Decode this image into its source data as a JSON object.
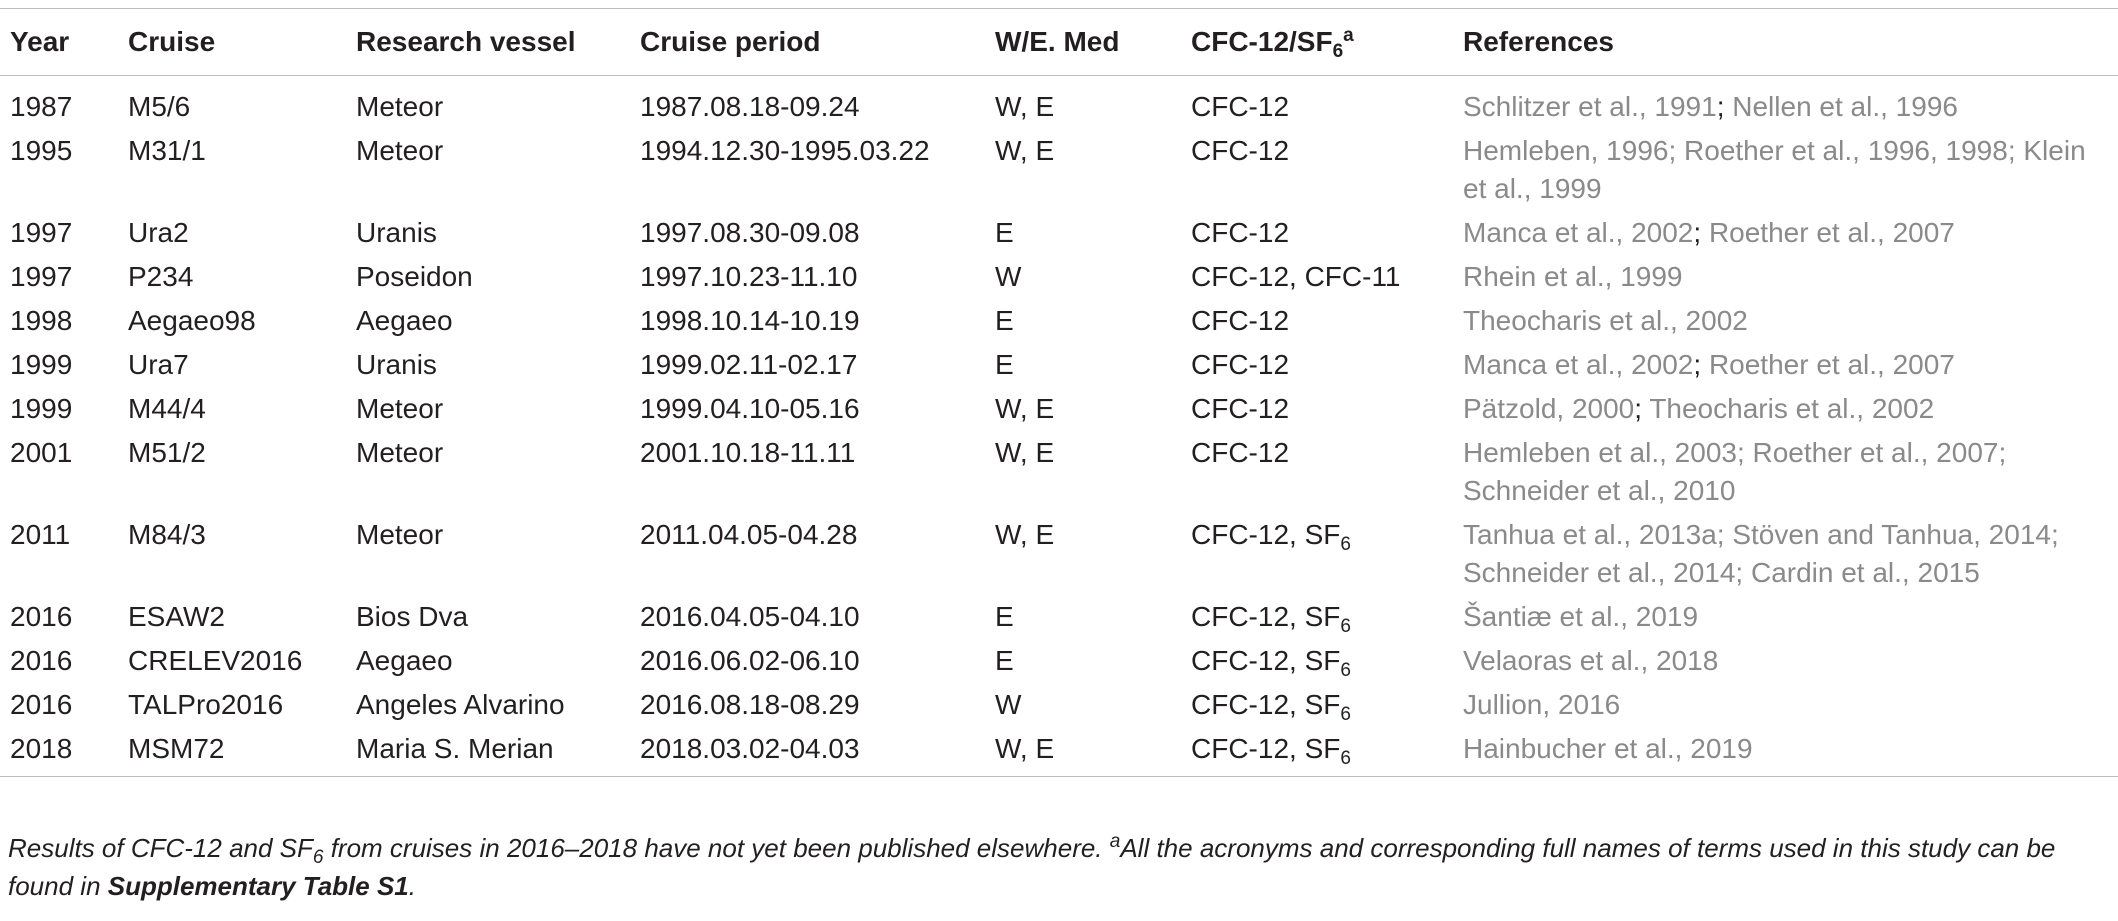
{
  "table": {
    "headers": {
      "year": "Year",
      "cruise": "Cruise",
      "vessel": "Research vessel",
      "period": "Cruise period",
      "med": "W/E. Med",
      "tracer_main": "CFC-12/SF",
      "tracer_sub": "6",
      "tracer_sup": "a",
      "references": "References"
    },
    "rows": [
      {
        "year": "1987",
        "cruise": "M5/6",
        "vessel": "Meteor",
        "period": "1987.08.18-09.24",
        "med": "W, E",
        "tracer": "CFC-12",
        "tracer_sub": "",
        "refs": [
          "Schlitzer et al., 1991",
          "Nellen et al., 1996"
        ],
        "refs_lines": null
      },
      {
        "year": "1995",
        "cruise": "M31/1",
        "vessel": "Meteor",
        "period": "1994.12.30-1995.03.22",
        "med": "W, E",
        "tracer": "CFC-12",
        "tracer_sub": "",
        "refs": [
          "Hemleben, 1996",
          "Roether et al., 1996, 1998",
          "Klein et al., 1999"
        ],
        "refs_lines": [
          "Hemleben, 1996; Roether et al., 1996, 1998; Klein",
          "et al., 1999"
        ]
      },
      {
        "year": "1997",
        "cruise": "Ura2",
        "vessel": "Uranis",
        "period": "1997.08.30-09.08",
        "med": "E",
        "tracer": "CFC-12",
        "tracer_sub": "",
        "refs": [
          "Manca et al., 2002",
          "Roether et al., 2007"
        ],
        "refs_lines": null
      },
      {
        "year": "1997",
        "cruise": "P234",
        "vessel": "Poseidon",
        "period": "1997.10.23-11.10",
        "med": "W",
        "tracer": "CFC-12, CFC-11",
        "tracer_sub": "",
        "refs": [
          "Rhein et al., 1999"
        ],
        "refs_lines": null
      },
      {
        "year": "1998",
        "cruise": "Aegaeo98",
        "vessel": "Aegaeo",
        "period": "1998.10.14-10.19",
        "med": "E",
        "tracer": "CFC-12",
        "tracer_sub": "",
        "refs": [
          "Theocharis et al., 2002"
        ],
        "refs_lines": null
      },
      {
        "year": "1999",
        "cruise": "Ura7",
        "vessel": "Uranis",
        "period": "1999.02.11-02.17",
        "med": "E",
        "tracer": "CFC-12",
        "tracer_sub": "",
        "refs": [
          "Manca et al., 2002",
          "Roether et al., 2007"
        ],
        "refs_lines": null
      },
      {
        "year": "1999",
        "cruise": "M44/4",
        "vessel": "Meteor",
        "period": "1999.04.10-05.16",
        "med": "W, E",
        "tracer": "CFC-12",
        "tracer_sub": "",
        "refs": [
          "Pätzold, 2000",
          "Theocharis et al., 2002"
        ],
        "refs_lines": null
      },
      {
        "year": "2001",
        "cruise": "M51/2",
        "vessel": "Meteor",
        "period": "2001.10.18-11.11",
        "med": "W, E",
        "tracer": "CFC-12",
        "tracer_sub": "",
        "refs": [
          "Hemleben et al., 2003",
          "Roether et al., 2007",
          "Schneider et al., 2010"
        ],
        "refs_lines": [
          "Hemleben et al., 2003; Roether et al., 2007;",
          "Schneider et al., 2010"
        ]
      },
      {
        "year": "2011",
        "cruise": "M84/3",
        "vessel": "Meteor",
        "period": "2011.04.05-04.28",
        "med": "W, E",
        "tracer": "CFC-12, SF",
        "tracer_sub": "6",
        "refs": [
          "Tanhua et al., 2013a",
          "Stöven and Tanhua, 2014",
          "Schneider et al., 2014",
          "Cardin et al., 2015"
        ],
        "refs_lines": [
          "Tanhua et al., 2013a; Stöven and Tanhua, 2014;",
          "Schneider et al., 2014; Cardin et al., 2015"
        ]
      },
      {
        "year": "2016",
        "cruise": "ESAW2",
        "vessel": "Bios Dva",
        "period": "2016.04.05-04.10",
        "med": "E",
        "tracer": "CFC-12, SF",
        "tracer_sub": "6",
        "refs": [
          "Šantiæ et al., 2019"
        ],
        "refs_lines": null
      },
      {
        "year": "2016",
        "cruise": "CRELEV2016",
        "vessel": "Aegaeo",
        "period": "2016.06.02-06.10",
        "med": "E",
        "tracer": "CFC-12, SF",
        "tracer_sub": "6",
        "refs": [
          "Velaoras et al., 2018"
        ],
        "refs_lines": null
      },
      {
        "year": "2016",
        "cruise": "TALPro2016",
        "vessel": "Angeles Alvarino",
        "period": "2016.08.18-08.29",
        "med": "W",
        "tracer": "CFC-12, SF",
        "tracer_sub": "6",
        "refs": [
          "Jullion, 2016"
        ],
        "refs_lines": null
      },
      {
        "year": "2018",
        "cruise": "MSM72",
        "vessel": "Maria S. Merian",
        "period": "2018.03.02-04.03",
        "med": "W, E",
        "tracer": "CFC-12, SF",
        "tracer_sub": "6",
        "refs": [
          "Hainbucher et al., 2019"
        ],
        "refs_lines": null
      }
    ]
  },
  "footnote": {
    "part1": "Results of CFC-12 and SF",
    "part1_sub": "6",
    "part2": " from cruises in 2016–2018 have not yet been published elsewhere. ",
    "sup": "a",
    "part3": "All the acronyms and corresponding full names of terms used in this study can be found in ",
    "bold": "Supplementary Table S1",
    "end": "."
  },
  "colors": {
    "text": "#231f20",
    "reference_link": "#8a8a8a",
    "rule": "#bdbdbd"
  }
}
